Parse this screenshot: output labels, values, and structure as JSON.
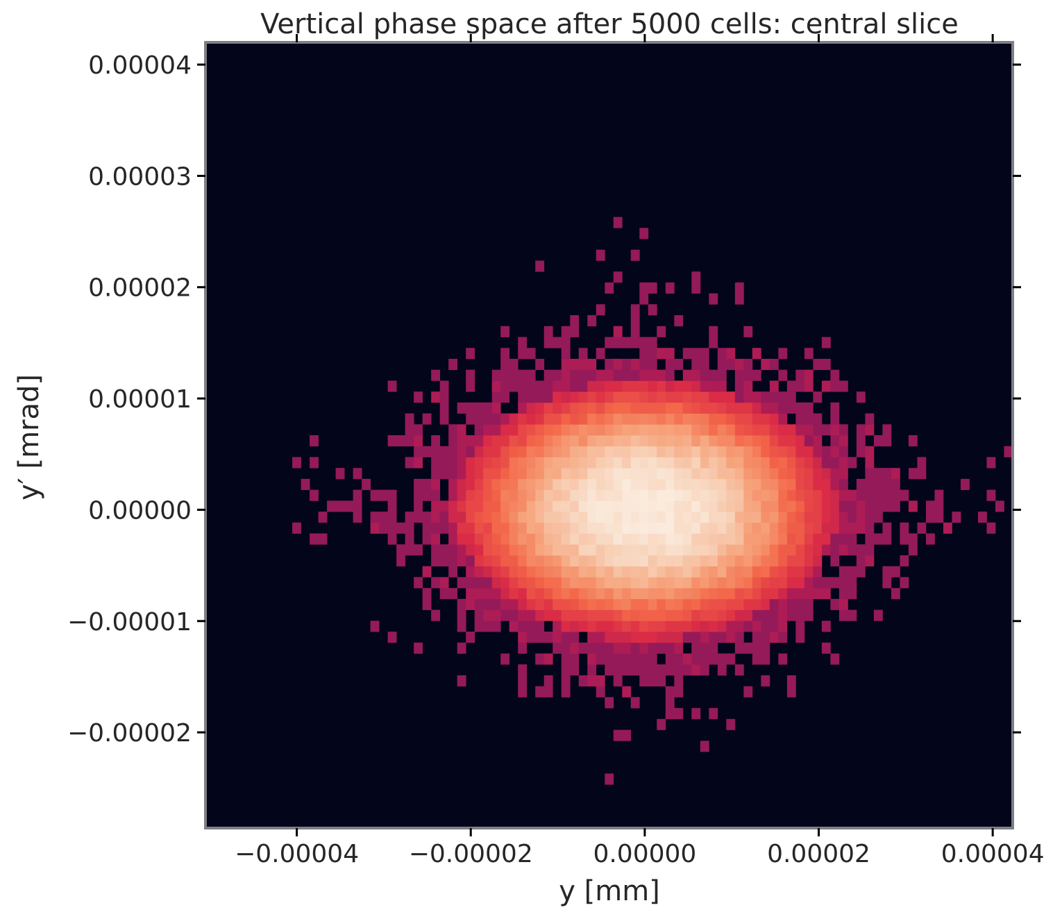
{
  "chart_data": {
    "type": "heatmap",
    "title": "Vertical phase space after 5000 cells: central slice",
    "xlabel": "y [mm]",
    "ylabel": "y′ [mrad]",
    "xlim": [
      -5.05e-05,
      4.23e-05
    ],
    "ylim": [
      -2.86e-05,
      4.2e-05
    ],
    "xticks": [
      {
        "value": -4e-05,
        "label": "−0.00004"
      },
      {
        "value": -2e-05,
        "label": "−0.00002"
      },
      {
        "value": 0.0,
        "label": "0.00000"
      },
      {
        "value": 2e-05,
        "label": "0.00002"
      },
      {
        "value": 4e-05,
        "label": "0.00004"
      }
    ],
    "yticks": [
      {
        "value": 4e-05,
        "label": "0.00004"
      },
      {
        "value": 3e-05,
        "label": "0.00003"
      },
      {
        "value": 2e-05,
        "label": "0.00002"
      },
      {
        "value": 1e-05,
        "label": "0.00001"
      },
      {
        "value": 0.0,
        "label": "0.00000"
      },
      {
        "value": -1e-05,
        "label": "−0.00001"
      },
      {
        "value": -2e-05,
        "label": "−0.00002"
      }
    ],
    "grid": false,
    "legend": "none",
    "colormap": "rocket",
    "colors": {
      "background": "#03051a",
      "axes_edge": "#7f7f86",
      "low": "#701f57",
      "mid": "#e13342",
      "high": "#faebdd"
    },
    "distribution": {
      "center": [
        0.0,
        0.0
      ],
      "sigma_y": 8.5e-06,
      "sigma_yprime": 4.5e-06,
      "bins": [
        93,
        72
      ],
      "peak_count": 90,
      "counts": "estimated from visual — single-particle bins appear at the fringe of the blob"
    }
  }
}
